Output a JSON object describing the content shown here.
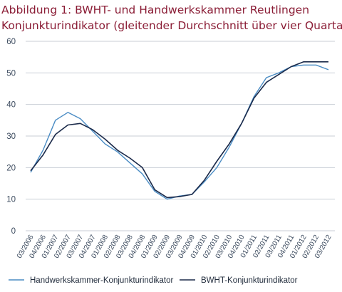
{
  "chart_data": {
    "type": "line",
    "title_line1": "Abbildung 1: BWHT- und Handwerkskammer  Reutlingen",
    "title_line2": "Konjunkturindikator (gleitender Durchschnitt über vier Quartale)",
    "xlabel": "",
    "ylabel": "",
    "ylim": [
      0,
      60
    ],
    "yticks": [
      0,
      10,
      20,
      30,
      40,
      50,
      60
    ],
    "grid": true,
    "legend_position": "bottom",
    "x": [
      "03/2006",
      "04/2006",
      "01/2007",
      "02/2007",
      "03/2007",
      "04/2007",
      "01/2008",
      "02/2008",
      "03/2008",
      "04/2008",
      "01/2009",
      "02/2009",
      "03/2009",
      "04/2009",
      "01/2010",
      "02/2010",
      "03/2010",
      "04/2010",
      "01/2011",
      "02/2011",
      "03/2011",
      "04/2011",
      "01/2012",
      "02/2012",
      "03/2012"
    ],
    "series": [
      {
        "name": "Handwerkskammer-Konjunkturindikator",
        "color": "#4a8cc4",
        "values": [
          18.5,
          25.5,
          35.0,
          37.5,
          35.5,
          31.5,
          27.5,
          25.0,
          21.5,
          18.0,
          12.5,
          10.0,
          11.0,
          11.5,
          15.5,
          20.0,
          26.5,
          34.0,
          42.5,
          48.5,
          50.0,
          52.0,
          52.5,
          52.5,
          51.0
        ]
      },
      {
        "name": "BWHT-Konjunkturindikator",
        "color": "#1b2a4a",
        "values": [
          19.0,
          24.0,
          30.5,
          33.5,
          34.0,
          32.0,
          29.0,
          25.5,
          23.0,
          20.0,
          13.0,
          10.5,
          10.8,
          11.5,
          16.0,
          22.0,
          27.5,
          34.0,
          42.0,
          47.0,
          49.5,
          52.0,
          53.5,
          53.5,
          53.5
        ]
      }
    ]
  }
}
